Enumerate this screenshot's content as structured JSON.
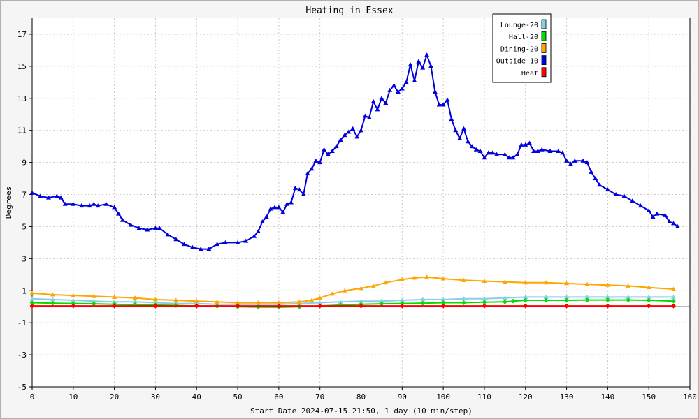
{
  "chart_data": {
    "type": "line",
    "title": "Heating in Essex",
    "xlabel": "Start Date 2024-07-15 21:50, 1 day (10 min/step)",
    "ylabel": "Degrees",
    "xlim": [
      0,
      160
    ],
    "ylim": [
      -5,
      18
    ],
    "x_ticks": [
      0,
      10,
      20,
      30,
      40,
      50,
      60,
      70,
      80,
      90,
      100,
      110,
      120,
      130,
      140,
      150,
      160
    ],
    "y_ticks": [
      -5,
      -3,
      -1,
      1,
      3,
      5,
      7,
      9,
      11,
      13,
      15,
      17
    ],
    "grid": true,
    "legend_position": "top-right",
    "series": [
      {
        "name": "Lounge-20",
        "color": "#87ceeb",
        "marker": "triangle",
        "points": [
          [
            0,
            0.5
          ],
          [
            5,
            0.45
          ],
          [
            10,
            0.4
          ],
          [
            15,
            0.35
          ],
          [
            20,
            0.3
          ],
          [
            25,
            0.3
          ],
          [
            30,
            0.25
          ],
          [
            35,
            0.2
          ],
          [
            40,
            0.2
          ],
          [
            45,
            0.15
          ],
          [
            50,
            0.15
          ],
          [
            55,
            0.15
          ],
          [
            60,
            0.15
          ],
          [
            65,
            0.2
          ],
          [
            70,
            0.25
          ],
          [
            75,
            0.3
          ],
          [
            80,
            0.35
          ],
          [
            85,
            0.35
          ],
          [
            90,
            0.4
          ],
          [
            95,
            0.45
          ],
          [
            100,
            0.45
          ],
          [
            105,
            0.5
          ],
          [
            110,
            0.5
          ],
          [
            115,
            0.55
          ],
          [
            120,
            0.6
          ],
          [
            125,
            0.6
          ],
          [
            130,
            0.6
          ],
          [
            135,
            0.6
          ],
          [
            140,
            0.6
          ],
          [
            145,
            0.6
          ],
          [
            150,
            0.6
          ],
          [
            156,
            0.6
          ]
        ]
      },
      {
        "name": "Hall-20",
        "color": "#00dd00",
        "marker": "diamond",
        "points": [
          [
            0,
            0.25
          ],
          [
            5,
            0.22
          ],
          [
            10,
            0.2
          ],
          [
            15,
            0.18
          ],
          [
            20,
            0.15
          ],
          [
            25,
            0.12
          ],
          [
            30,
            0.1
          ],
          [
            35,
            0.08
          ],
          [
            40,
            0.05
          ],
          [
            45,
            0.03
          ],
          [
            50,
            0.0
          ],
          [
            55,
            -0.02
          ],
          [
            60,
            -0.03
          ],
          [
            65,
            0.0
          ],
          [
            70,
            0.05
          ],
          [
            75,
            0.1
          ],
          [
            80,
            0.15
          ],
          [
            85,
            0.18
          ],
          [
            90,
            0.2
          ],
          [
            95,
            0.22
          ],
          [
            100,
            0.25
          ],
          [
            105,
            0.25
          ],
          [
            110,
            0.28
          ],
          [
            115,
            0.3
          ],
          [
            117,
            0.35
          ],
          [
            120,
            0.4
          ],
          [
            125,
            0.4
          ],
          [
            130,
            0.4
          ],
          [
            135,
            0.42
          ],
          [
            140,
            0.42
          ],
          [
            145,
            0.42
          ],
          [
            150,
            0.4
          ],
          [
            156,
            0.35
          ]
        ]
      },
      {
        "name": "Dining-20",
        "color": "#ffa500",
        "marker": "triangle",
        "points": [
          [
            0,
            0.85
          ],
          [
            5,
            0.75
          ],
          [
            10,
            0.7
          ],
          [
            15,
            0.65
          ],
          [
            20,
            0.6
          ],
          [
            25,
            0.55
          ],
          [
            30,
            0.45
          ],
          [
            35,
            0.4
          ],
          [
            40,
            0.35
          ],
          [
            45,
            0.3
          ],
          [
            50,
            0.25
          ],
          [
            55,
            0.25
          ],
          [
            60,
            0.25
          ],
          [
            65,
            0.3
          ],
          [
            68,
            0.4
          ],
          [
            70,
            0.55
          ],
          [
            73,
            0.8
          ],
          [
            76,
            1.0
          ],
          [
            80,
            1.15
          ],
          [
            83,
            1.3
          ],
          [
            86,
            1.5
          ],
          [
            90,
            1.7
          ],
          [
            93,
            1.8
          ],
          [
            96,
            1.85
          ],
          [
            100,
            1.75
          ],
          [
            105,
            1.65
          ],
          [
            110,
            1.6
          ],
          [
            115,
            1.55
          ],
          [
            120,
            1.5
          ],
          [
            125,
            1.5
          ],
          [
            130,
            1.45
          ],
          [
            135,
            1.4
          ],
          [
            140,
            1.35
          ],
          [
            145,
            1.3
          ],
          [
            150,
            1.2
          ],
          [
            156,
            1.1
          ]
        ]
      },
      {
        "name": "Outside-10",
        "color": "#0000dd",
        "marker": "triangle",
        "points": [
          [
            0,
            7.1
          ],
          [
            2,
            6.9
          ],
          [
            4,
            6.8
          ],
          [
            6,
            6.9
          ],
          [
            7,
            6.8
          ],
          [
            8,
            6.4
          ],
          [
            10,
            6.4
          ],
          [
            12,
            6.3
          ],
          [
            14,
            6.3
          ],
          [
            15,
            6.4
          ],
          [
            16,
            6.3
          ],
          [
            18,
            6.4
          ],
          [
            20,
            6.2
          ],
          [
            21,
            5.8
          ],
          [
            22,
            5.4
          ],
          [
            24,
            5.1
          ],
          [
            26,
            4.9
          ],
          [
            28,
            4.8
          ],
          [
            30,
            4.9
          ],
          [
            31,
            4.9
          ],
          [
            33,
            4.5
          ],
          [
            35,
            4.2
          ],
          [
            37,
            3.9
          ],
          [
            39,
            3.7
          ],
          [
            41,
            3.6
          ],
          [
            43,
            3.6
          ],
          [
            45,
            3.9
          ],
          [
            47,
            4.0
          ],
          [
            50,
            4.0
          ],
          [
            52,
            4.1
          ],
          [
            54,
            4.4
          ],
          [
            55,
            4.7
          ],
          [
            56,
            5.3
          ],
          [
            57,
            5.6
          ],
          [
            58,
            6.1
          ],
          [
            59,
            6.2
          ],
          [
            60,
            6.2
          ],
          [
            61,
            5.9
          ],
          [
            62,
            6.4
          ],
          [
            63,
            6.5
          ],
          [
            64,
            7.4
          ],
          [
            65,
            7.3
          ],
          [
            66,
            7.0
          ],
          [
            67,
            8.3
          ],
          [
            68,
            8.6
          ],
          [
            69,
            9.1
          ],
          [
            70,
            9.0
          ],
          [
            71,
            9.8
          ],
          [
            72,
            9.5
          ],
          [
            73,
            9.7
          ],
          [
            74,
            10.0
          ],
          [
            75,
            10.4
          ],
          [
            76,
            10.7
          ],
          [
            77,
            10.9
          ],
          [
            78,
            11.1
          ],
          [
            79,
            10.6
          ],
          [
            80,
            11.0
          ],
          [
            81,
            11.9
          ],
          [
            82,
            11.8
          ],
          [
            83,
            12.8
          ],
          [
            84,
            12.3
          ],
          [
            85,
            13.0
          ],
          [
            86,
            12.7
          ],
          [
            87,
            13.5
          ],
          [
            88,
            13.8
          ],
          [
            89,
            13.4
          ],
          [
            90,
            13.6
          ],
          [
            91,
            14.0
          ],
          [
            92,
            15.1
          ],
          [
            93,
            14.1
          ],
          [
            94,
            15.3
          ],
          [
            95,
            14.9
          ],
          [
            96,
            15.7
          ],
          [
            97,
            15.0
          ],
          [
            98,
            13.4
          ],
          [
            99,
            12.6
          ],
          [
            100,
            12.6
          ],
          [
            101,
            12.9
          ],
          [
            102,
            11.7
          ],
          [
            103,
            11.0
          ],
          [
            104,
            10.5
          ],
          [
            105,
            11.1
          ],
          [
            106,
            10.3
          ],
          [
            107,
            10.0
          ],
          [
            108,
            9.8
          ],
          [
            109,
            9.7
          ],
          [
            110,
            9.3
          ],
          [
            111,
            9.6
          ],
          [
            112,
            9.6
          ],
          [
            113,
            9.5
          ],
          [
            115,
            9.5
          ],
          [
            116,
            9.3
          ],
          [
            117,
            9.3
          ],
          [
            118,
            9.5
          ],
          [
            119,
            10.1
          ],
          [
            120,
            10.1
          ],
          [
            121,
            10.2
          ],
          [
            122,
            9.7
          ],
          [
            123,
            9.7
          ],
          [
            124,
            9.8
          ],
          [
            126,
            9.7
          ],
          [
            128,
            9.7
          ],
          [
            129,
            9.6
          ],
          [
            130,
            9.1
          ],
          [
            131,
            8.9
          ],
          [
            132,
            9.1
          ],
          [
            134,
            9.1
          ],
          [
            135,
            9.0
          ],
          [
            136,
            8.4
          ],
          [
            137,
            8.0
          ],
          [
            138,
            7.6
          ],
          [
            140,
            7.3
          ],
          [
            142,
            7.0
          ],
          [
            144,
            6.9
          ],
          [
            146,
            6.6
          ],
          [
            148,
            6.3
          ],
          [
            150,
            6.0
          ],
          [
            151,
            5.6
          ],
          [
            152,
            5.8
          ],
          [
            154,
            5.7
          ],
          [
            155,
            5.3
          ],
          [
            156,
            5.2
          ],
          [
            157,
            5.0
          ]
        ]
      },
      {
        "name": "Heat",
        "color": "#ff0000",
        "marker": "diamond",
        "points": [
          [
            0,
            0.05
          ],
          [
            10,
            0.05
          ],
          [
            20,
            0.05
          ],
          [
            30,
            0.05
          ],
          [
            40,
            0.05
          ],
          [
            50,
            0.05
          ],
          [
            60,
            0.05
          ],
          [
            70,
            0.05
          ],
          [
            80,
            0.05
          ],
          [
            90,
            0.05
          ],
          [
            100,
            0.05
          ],
          [
            110,
            0.05
          ],
          [
            120,
            0.05
          ],
          [
            130,
            0.05
          ],
          [
            140,
            0.05
          ],
          [
            150,
            0.05
          ],
          [
            156,
            0.05
          ]
        ]
      }
    ]
  }
}
